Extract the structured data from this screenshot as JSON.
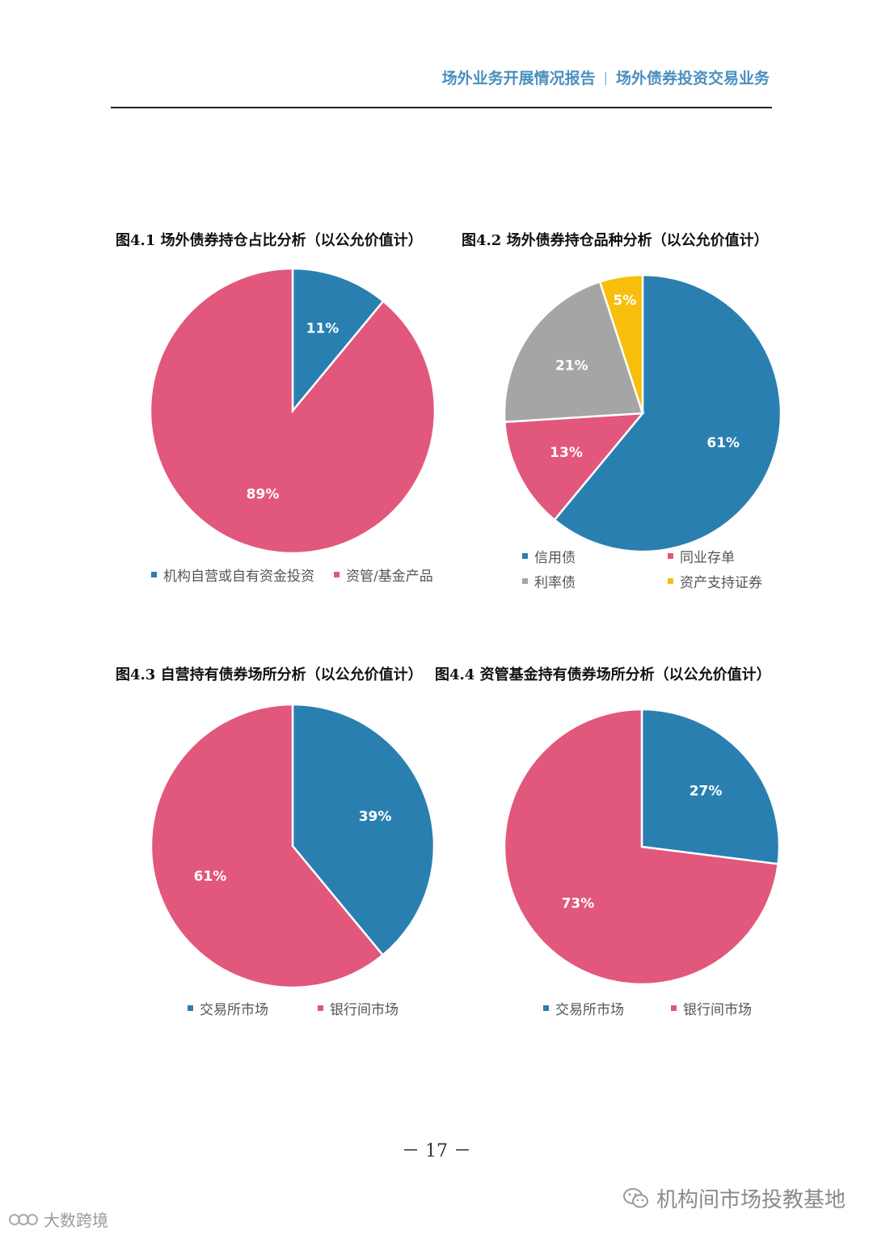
{
  "header": {
    "left": "场外业务开展情况报告",
    "separator": "|",
    "right": "场外债券投资交易业务"
  },
  "colors": {
    "blue": "#2980b0",
    "pink": "#e2577c",
    "gray": "#a5a5a5",
    "yellow": "#f7bf0b"
  },
  "chart_data": [
    {
      "type": "pie",
      "title": "图4.1 场外债券持仓占比分析（以公允价值计）",
      "slices": [
        {
          "name": "机构自营或自有资金投资",
          "value": 11,
          "label": "11%",
          "color": "#2980b0"
        },
        {
          "name": "资管/基金产品",
          "value": 89,
          "label": "89%",
          "color": "#e2577c"
        }
      ]
    },
    {
      "type": "pie",
      "title": "图4.2 场外债券持仓品种分析（以公允价值计）",
      "slices": [
        {
          "name": "信用债",
          "value": 61,
          "label": "61%",
          "color": "#2980b0"
        },
        {
          "name": "同业存单",
          "value": 13,
          "label": "13%",
          "color": "#e2577c"
        },
        {
          "name": "利率债",
          "value": 21,
          "label": "21%",
          "color": "#a5a5a5"
        },
        {
          "name": "资产支持证券",
          "value": 5,
          "label": "5%",
          "color": "#f7bf0b"
        }
      ]
    },
    {
      "type": "pie",
      "title": "图4.3 自营持有债券场所分析（以公允价值计）",
      "slices": [
        {
          "name": "交易所市场",
          "value": 39,
          "label": "39%",
          "color": "#2980b0"
        },
        {
          "name": "银行间市场",
          "value": 61,
          "label": "61%",
          "color": "#e2577c"
        }
      ]
    },
    {
      "type": "pie",
      "title": "图4.4 资管基金持有债券场所分析（以公允价值计）",
      "slices": [
        {
          "name": "交易所市场",
          "value": 27,
          "label": "27%",
          "color": "#2980b0"
        },
        {
          "name": "银行间市场",
          "value": 73,
          "label": "73%",
          "color": "#e2577c"
        }
      ]
    }
  ],
  "page_number": "－ 17 －",
  "watermarks": {
    "right": "机构间市场投教基地",
    "left": "大数跨境"
  }
}
